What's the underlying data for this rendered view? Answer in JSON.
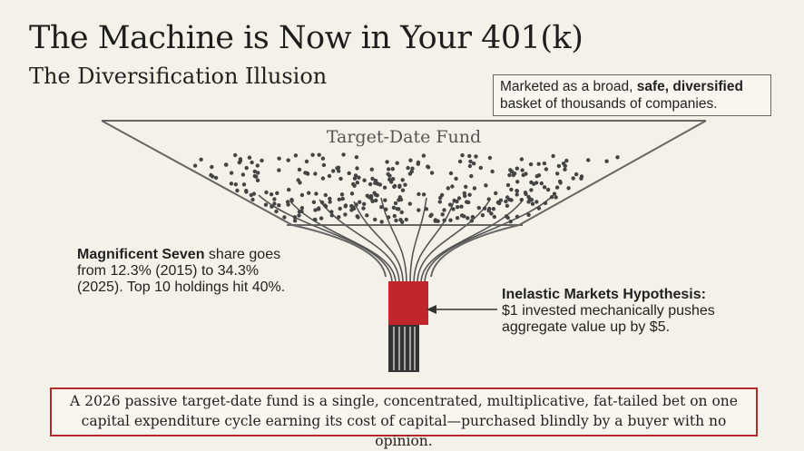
{
  "header": {
    "title": "The Machine is Now in Your 401(k)",
    "subtitle": "The Diversification Illusion"
  },
  "callout": {
    "parts": [
      "Marketed as a broad, ",
      "safe, diversified",
      "basket of thousands of companies."
    ]
  },
  "funnel": {
    "label": "Target-Date Fund"
  },
  "left_note": {
    "parts": [
      "Magnificent Seven",
      " share goes",
      "from 12.3% (2015) to 34.3%",
      "(2025). Top 10 holdings hit 40%."
    ]
  },
  "right_note": {
    "parts": [
      "Inelastic Markets Hypothesis:",
      "$1 invested mechanically pushes",
      "aggregate value up by $5."
    ]
  },
  "footer": {
    "lines": [
      "A 2026 passive target-date fund is a single, concentrated, multiplicative, fat-tailed bet on one",
      "capital expenditure cycle earning its cost of capital—purchased blindly by a buyer with no opinion."
    ]
  }
}
